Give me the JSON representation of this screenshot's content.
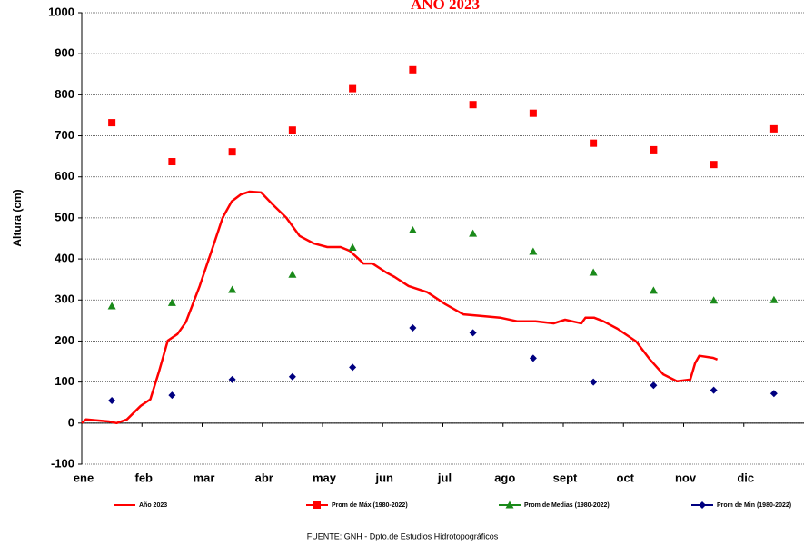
{
  "chart_data": {
    "type": "line",
    "title": "AÑO 2023",
    "y_label": "Altura (cm)",
    "source": "FUENTE:  GNH  - Dpto.de Estudios Hidrotopográficos",
    "xlim": [
      0,
      12
    ],
    "xticks": [
      {
        "value": 0,
        "label": "ene"
      },
      {
        "value": 1,
        "label": "feb"
      },
      {
        "value": 2,
        "label": "mar"
      },
      {
        "value": 3,
        "label": "abr"
      },
      {
        "value": 4,
        "label": "may"
      },
      {
        "value": 5,
        "label": "jun"
      },
      {
        "value": 6,
        "label": "jul"
      },
      {
        "value": 7,
        "label": "ago"
      },
      {
        "value": 8,
        "label": "sept"
      },
      {
        "value": 9,
        "label": "oct"
      },
      {
        "value": 10,
        "label": "nov"
      },
      {
        "value": 11,
        "label": "dic"
      }
    ],
    "ylim": [
      -100,
      1000
    ],
    "yticks": [
      -100,
      0,
      100,
      200,
      300,
      400,
      500,
      600,
      700,
      800,
      900,
      1000
    ],
    "grid": true,
    "legend": "bottom",
    "series": [
      {
        "name": "Año 2023",
        "color": "#ff0000",
        "marker": "none",
        "x": [
          0,
          0.07,
          0.45,
          0.58,
          0.75,
          0.98,
          1.14,
          1.28,
          1.43,
          1.59,
          1.73,
          1.96,
          2.19,
          2.34,
          2.49,
          2.64,
          2.79,
          2.98,
          3.17,
          3.4,
          3.62,
          3.85,
          4.08,
          4.3,
          4.45,
          4.6,
          4.68,
          4.83,
          5.06,
          5.2,
          5.43,
          5.74,
          6.04,
          6.34,
          6.64,
          6.95,
          7.24,
          7.54,
          7.84,
          8.03,
          8.3,
          8.37,
          8.51,
          8.67,
          8.9,
          9.21,
          9.43,
          9.66,
          9.89,
          10.11,
          10.19,
          10.26,
          10.49,
          10.56
        ],
        "values": [
          0,
          9,
          4,
          0,
          9,
          42,
          58,
          124,
          201,
          217,
          246,
          334,
          434,
          500,
          540,
          557,
          564,
          562,
          533,
          500,
          456,
          438,
          429,
          429,
          420,
          400,
          389,
          389,
          367,
          356,
          334,
          319,
          290,
          265,
          261,
          257,
          248,
          248,
          243,
          252,
          243,
          257,
          257,
          248,
          230,
          199,
          157,
          119,
          102,
          106,
          146,
          164,
          159,
          155
        ]
      },
      {
        "name": "Prom de Máx  (1980-2022)",
        "color": "#ff0000",
        "marker": "square",
        "x": [
          0.5,
          1.5,
          2.5,
          3.5,
          4.5,
          5.5,
          6.5,
          7.5,
          8.5,
          9.5,
          10.5,
          11.5
        ],
        "values": [
          732,
          637,
          661,
          714,
          815,
          861,
          776,
          755,
          682,
          666,
          630,
          717
        ]
      },
      {
        "name": "Prom de Medias   (1980-2022)",
        "color": "#1a8a1a",
        "marker": "triangle",
        "x": [
          0.5,
          1.5,
          2.5,
          3.5,
          4.5,
          5.5,
          6.5,
          7.5,
          8.5,
          9.5,
          10.5,
          11.5
        ],
        "values": [
          285,
          293,
          325,
          362,
          428,
          470,
          462,
          418,
          367,
          323,
          299,
          300
        ]
      },
      {
        "name": "Prom de Min  (1980-2022)",
        "color": "#000080",
        "marker": "diamond",
        "x": [
          0.5,
          1.5,
          2.5,
          3.5,
          4.5,
          5.5,
          6.5,
          7.5,
          8.5,
          9.5,
          10.5,
          11.5
        ],
        "values": [
          55,
          68,
          106,
          113,
          136,
          232,
          220,
          158,
          100,
          92,
          80,
          72
        ]
      }
    ]
  }
}
